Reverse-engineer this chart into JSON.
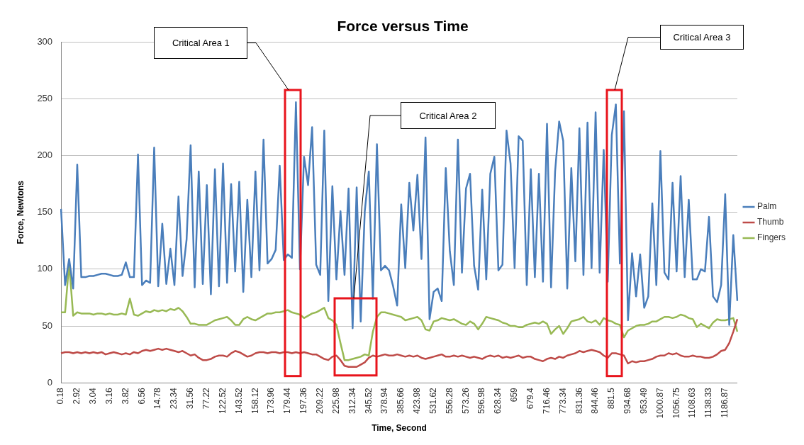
{
  "chart_data": {
    "type": "line",
    "title": "Force versus Time",
    "xlabel": "Time, Second",
    "ylabel": "Force, Newtons",
    "categories": [
      "0.18",
      null,
      null,
      null,
      "2.92",
      null,
      null,
      null,
      "3.04",
      null,
      null,
      null,
      "3.16",
      null,
      null,
      null,
      "3.82",
      null,
      null,
      null,
      "6.56",
      null,
      null,
      null,
      "14.78",
      null,
      null,
      null,
      "23.34",
      null,
      null,
      null,
      "31.56",
      null,
      null,
      null,
      "77.22",
      null,
      null,
      null,
      "122.52",
      null,
      null,
      null,
      "143.52",
      null,
      null,
      null,
      "158.12",
      null,
      null,
      null,
      "173.96",
      null,
      null,
      null,
      "179.44",
      null,
      null,
      null,
      "197.36",
      null,
      null,
      null,
      "209.22",
      null,
      null,
      null,
      "225.98",
      null,
      null,
      null,
      "312.34",
      null,
      null,
      null,
      "345.52",
      null,
      null,
      null,
      "378.94",
      null,
      null,
      null,
      "385.66",
      null,
      null,
      null,
      "423.98",
      null,
      null,
      null,
      "531.62",
      null,
      null,
      null,
      "556.28",
      null,
      null,
      null,
      "573.26",
      null,
      null,
      null,
      "596.98",
      null,
      null,
      null,
      "628.34",
      null,
      null,
      null,
      "659",
      null,
      null,
      null,
      "679.4",
      null,
      null,
      null,
      "716.46",
      null,
      null,
      null,
      "773.34",
      null,
      null,
      null,
      "831.36",
      null,
      null,
      null,
      "844.46",
      null,
      null,
      null,
      "881.5",
      null,
      null,
      null,
      "934.68",
      null,
      null,
      null,
      "953.49",
      null,
      null,
      null,
      "1000.87",
      null,
      null,
      null,
      "1056.75",
      null,
      null,
      null,
      "1108.63",
      null,
      null,
      null,
      "1138.33",
      null,
      null,
      null,
      "1186.87",
      null,
      null,
      null
    ],
    "series": [
      {
        "name": "Palm",
        "color": "#4a7ebb",
        "values": [
          153,
          86,
          109,
          83,
          192,
          93,
          93,
          94,
          94,
          95,
          96,
          96,
          95,
          94,
          94,
          95,
          106,
          93,
          93,
          201,
          86,
          90,
          88,
          207,
          85,
          140,
          87,
          118,
          86,
          164,
          94,
          126,
          209,
          84,
          186,
          87,
          174,
          78,
          188,
          85,
          193,
          88,
          175,
          98,
          177,
          80,
          161,
          93,
          186,
          99,
          214,
          105,
          109,
          117,
          191,
          108,
          113,
          110,
          247,
          100,
          199,
          174,
          225,
          104,
          95,
          222,
          72,
          173,
          91,
          151,
          95,
          171,
          48,
          172,
          54,
          151,
          186,
          74,
          210,
          99,
          103,
          99,
          85,
          68,
          157,
          101,
          176,
          134,
          183,
          109,
          216,
          56,
          80,
          83,
          72,
          189,
          116,
          86,
          214,
          97,
          171,
          184,
          103,
          82,
          170,
          91,
          184,
          199,
          99,
          104,
          222,
          193,
          101,
          217,
          213,
          86,
          188,
          93,
          184,
          89,
          228,
          84,
          186,
          230,
          213,
          83,
          189,
          107,
          224,
          95,
          229,
          101,
          238,
          97,
          205,
          89,
          218,
          245,
          105,
          239,
          55,
          114,
          76,
          113,
          66,
          76,
          158,
          86,
          204,
          97,
          91,
          176,
          98,
          182,
          93,
          161,
          91,
          91,
          100,
          98,
          146,
          76,
          71,
          86,
          166,
          51,
          130,
          72
        ]
      },
      {
        "name": "Thumb",
        "color": "#be4b48",
        "values": [
          26,
          27,
          27,
          26,
          27,
          26,
          27,
          26,
          27,
          26,
          27,
          25,
          26,
          27,
          26,
          25,
          26,
          25,
          27,
          26,
          28,
          29,
          28,
          29,
          30,
          29,
          30,
          29,
          28,
          27,
          28,
          26,
          24,
          25,
          22,
          20,
          20,
          21,
          23,
          24,
          24,
          23,
          26,
          28,
          27,
          25,
          23,
          24,
          26,
          27,
          27,
          26,
          27,
          27,
          26,
          27,
          27,
          26,
          27,
          26,
          27,
          26,
          25,
          25,
          23,
          21,
          20,
          23,
          24,
          20,
          15,
          14,
          14,
          14,
          16,
          18,
          22,
          24,
          23,
          24,
          25,
          24,
          24,
          25,
          24,
          23,
          24,
          23,
          24,
          22,
          21,
          22,
          23,
          24,
          25,
          23,
          23,
          24,
          23,
          24,
          23,
          22,
          23,
          22,
          21,
          23,
          24,
          23,
          24,
          22,
          23,
          22,
          23,
          24,
          22,
          23,
          23,
          21,
          20,
          19,
          21,
          22,
          21,
          23,
          22,
          24,
          25,
          26,
          28,
          27,
          28,
          29,
          28,
          27,
          24,
          22,
          26,
          26,
          25,
          24,
          17,
          19,
          18,
          19,
          19,
          20,
          21,
          23,
          24,
          24,
          26,
          25,
          26,
          24,
          23,
          23,
          24,
          23,
          23,
          22,
          22,
          23,
          25,
          28,
          29,
          35,
          45,
          56
        ]
      },
      {
        "name": "Fingers",
        "color": "#98b954",
        "values": [
          62,
          62,
          105,
          59,
          62,
          61,
          61,
          61,
          60,
          61,
          61,
          60,
          61,
          60,
          60,
          61,
          60,
          74,
          60,
          59,
          61,
          63,
          62,
          64,
          63,
          64,
          63,
          65,
          64,
          66,
          63,
          58,
          52,
          52,
          51,
          51,
          51,
          53,
          55,
          56,
          57,
          58,
          55,
          51,
          51,
          56,
          58,
          56,
          55,
          57,
          59,
          61,
          61,
          62,
          62,
          63,
          64,
          62,
          61,
          60,
          57,
          59,
          61,
          62,
          64,
          66,
          57,
          55,
          51,
          35,
          20,
          20,
          21,
          22,
          23,
          25,
          24,
          45,
          58,
          62,
          62,
          61,
          60,
          59,
          58,
          55,
          56,
          57,
          58,
          55,
          47,
          46,
          54,
          55,
          57,
          56,
          55,
          56,
          54,
          52,
          51,
          54,
          52,
          47,
          52,
          58,
          57,
          56,
          55,
          53,
          52,
          50,
          50,
          49,
          49,
          51,
          52,
          53,
          52,
          54,
          52,
          43,
          47,
          50,
          43,
          48,
          54,
          55,
          56,
          58,
          54,
          53,
          55,
          51,
          57,
          55,
          54,
          52,
          51,
          40,
          46,
          48,
          50,
          51,
          51,
          52,
          54,
          54,
          56,
          58,
          58,
          57,
          58,
          60,
          59,
          57,
          56,
          49,
          52,
          50,
          48,
          53,
          56,
          55,
          55,
          56,
          57,
          45
        ]
      }
    ],
    "ylim": [
      0,
      300
    ],
    "yticks": [
      0,
      50,
      100,
      150,
      200,
      250,
      300
    ],
    "grid": "y",
    "legend": "right",
    "annotations": [
      "Critical Area 1",
      "Critical Area 2",
      "Critical Area 3"
    ]
  }
}
